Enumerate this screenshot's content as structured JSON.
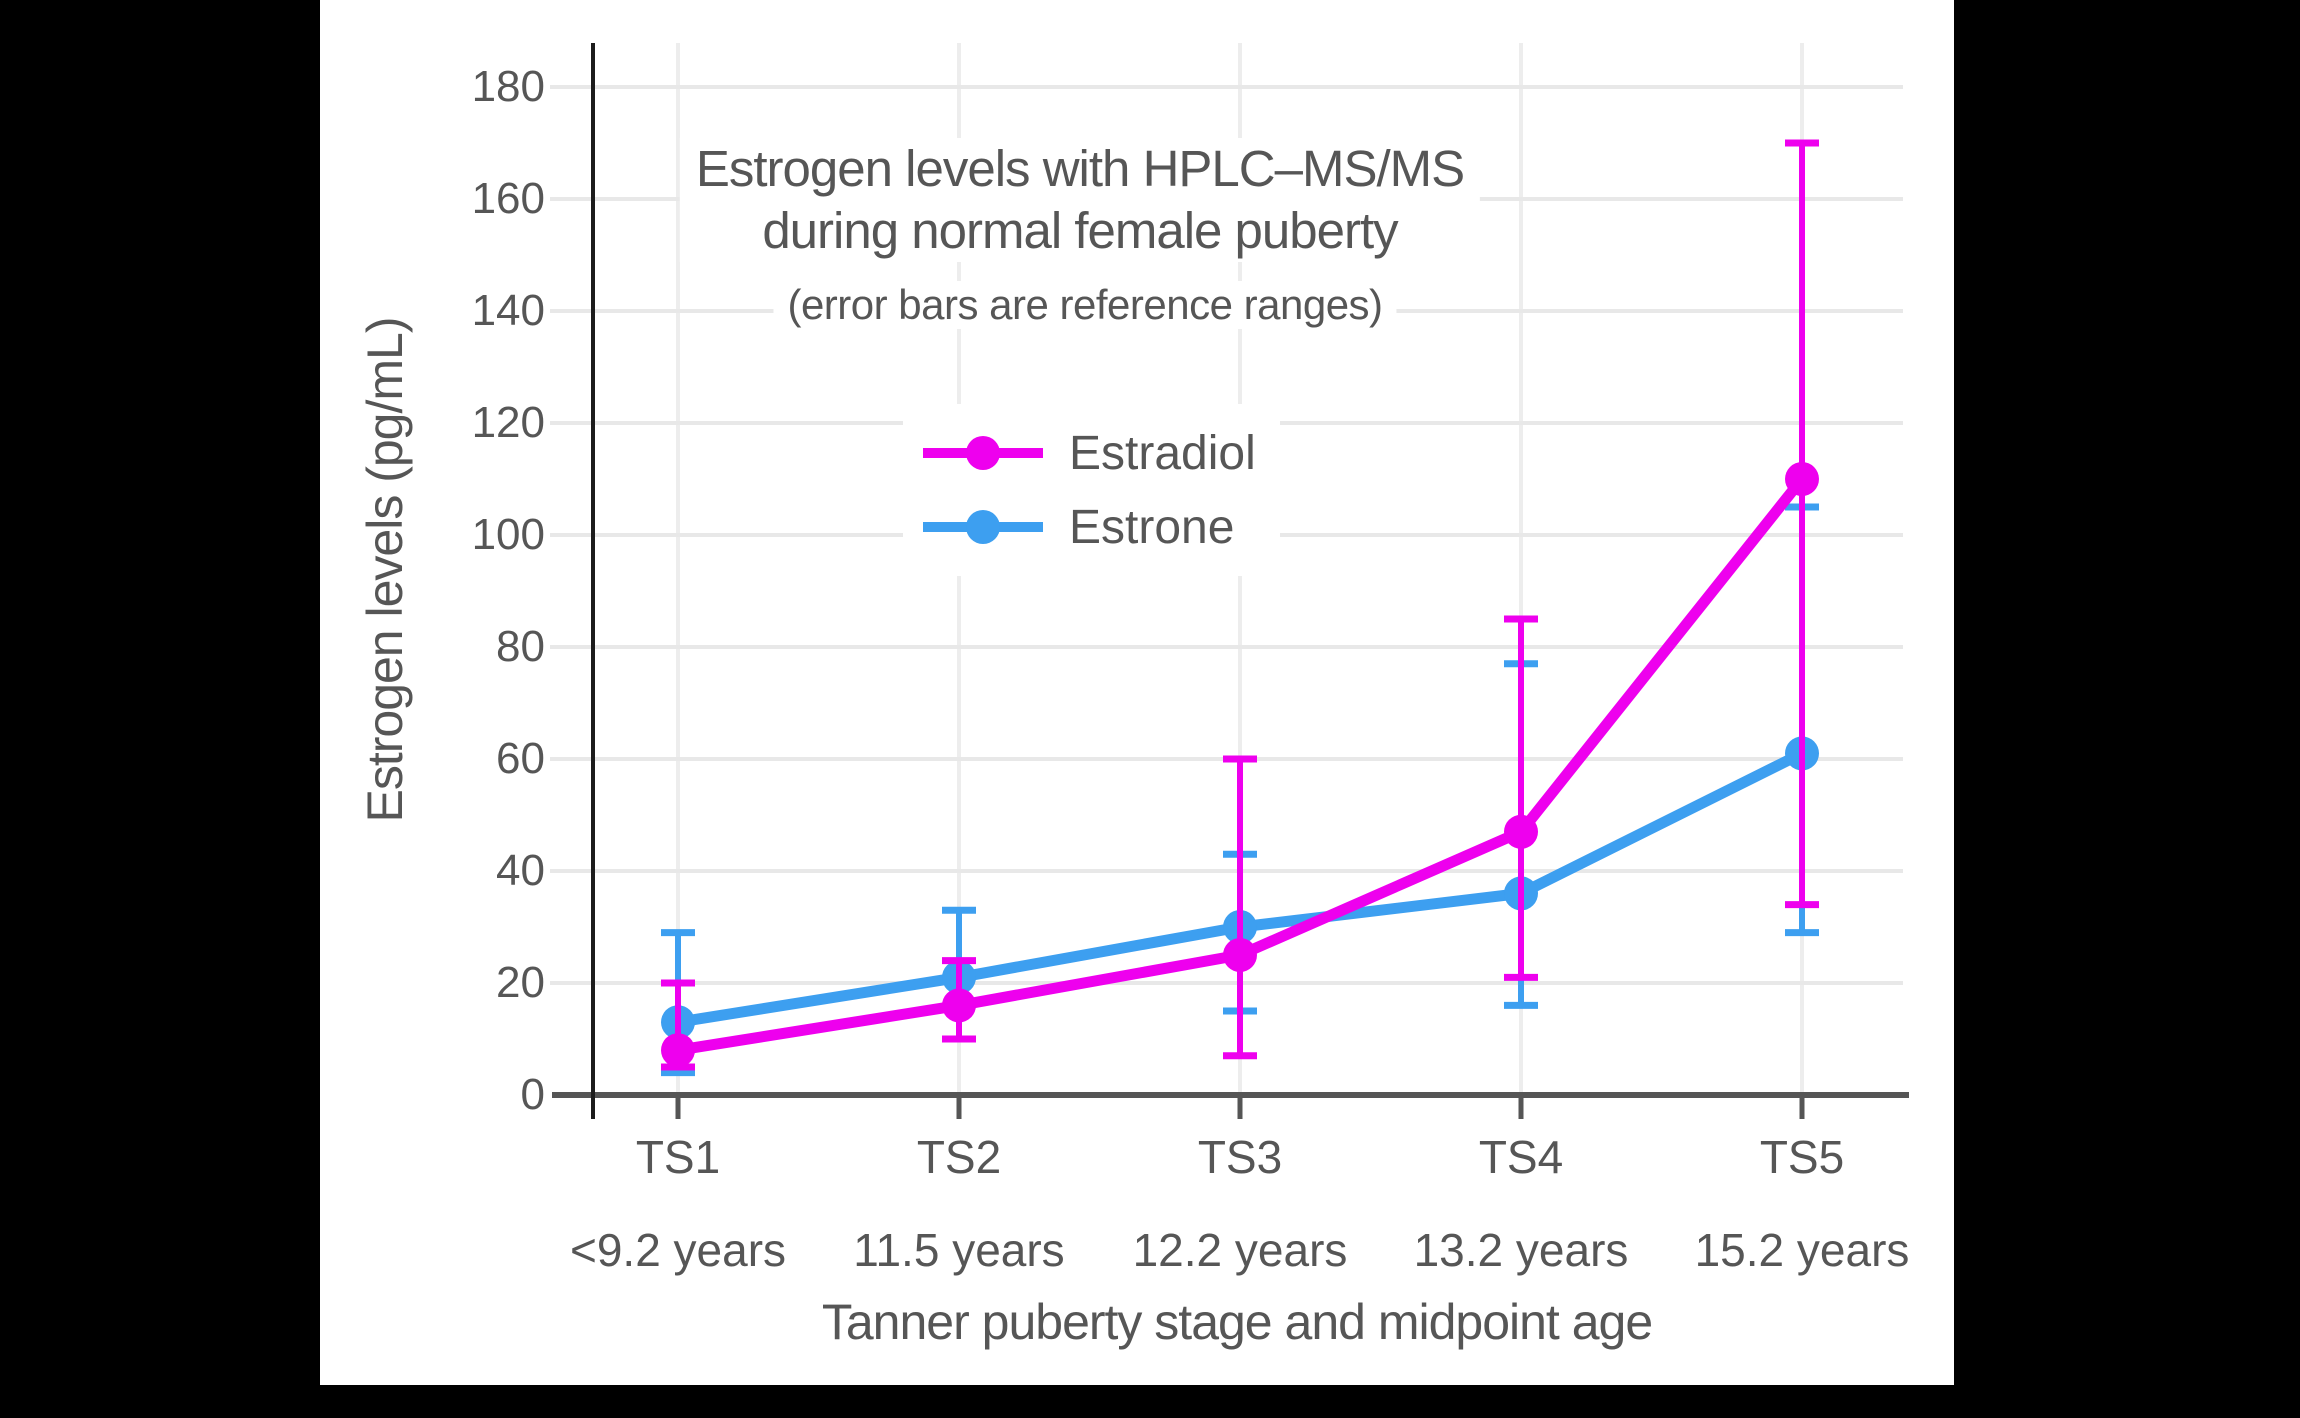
{
  "figure": {
    "background": "#000000",
    "panel_background": "#ffffff",
    "text_color": "#565656",
    "axis_color": "#555555",
    "spine_color": "#1c1c1c",
    "grid_color": "#e8e8e8",
    "vgrid_color": "#ededed"
  },
  "chart_data": {
    "type": "line",
    "title_line1": "Estrogen levels with HPLC–MS/MS",
    "title_line2": "during normal female puberty",
    "subtitle": "(error bars are reference ranges)",
    "xlabel": "Tanner puberty stage and midpoint age",
    "ylabel": "Estrogen levels (pg/mL)",
    "categories": [
      "TS1",
      "TS2",
      "TS3",
      "TS4",
      "TS5"
    ],
    "category_ages": [
      "<9.2 years",
      "11.5 years",
      "12.2 years",
      "13.2 years",
      "15.2 years"
    ],
    "ylim": [
      0,
      190
    ],
    "yticks": [
      0,
      20,
      40,
      60,
      80,
      100,
      120,
      140,
      160,
      180
    ],
    "grid": true,
    "legend_position": "upper-left-inside",
    "error_bar_meaning": "reference ranges",
    "series": [
      {
        "name": "Estradiol",
        "color": "#ee00ee",
        "values": [
          8,
          16,
          25,
          47,
          110
        ],
        "error_low": [
          5,
          10,
          7,
          21,
          34
        ],
        "error_high": [
          20,
          24,
          60,
          85,
          170
        ]
      },
      {
        "name": "Estrone",
        "color": "#3d9ff0",
        "values": [
          13,
          21,
          30,
          36,
          61
        ],
        "error_low": [
          4,
          10,
          15,
          16,
          29
        ],
        "error_high": [
          29,
          33,
          43,
          77,
          105
        ]
      }
    ]
  }
}
